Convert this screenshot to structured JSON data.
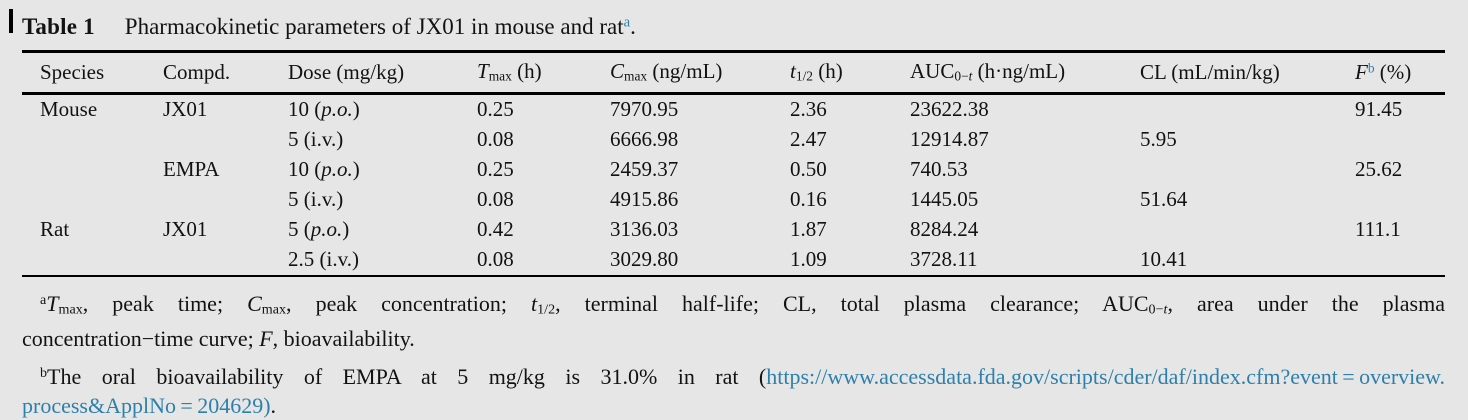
{
  "colors": {
    "background": "#e6e6e6",
    "text": "#121212",
    "accent": "#2d80ab",
    "rule": "#000000"
  },
  "title": {
    "label": "Table 1",
    "segments": [
      {
        "t": "Pharmacokinetic parameters of JX01 in mouse and rat"
      },
      {
        "t": "a",
        "s": "supa"
      },
      {
        "t": "."
      }
    ]
  },
  "table": {
    "headers": [
      [
        {
          "t": "Species"
        }
      ],
      [
        {
          "t": "Compd."
        }
      ],
      [
        {
          "t": "Dose (mg/kg)"
        }
      ],
      [
        {
          "t": "T",
          "s": "i"
        },
        {
          "t": "max",
          "s": "sub"
        },
        {
          "t": " (h)"
        }
      ],
      [
        {
          "t": "C",
          "s": "i"
        },
        {
          "t": "max",
          "s": "sub"
        },
        {
          "t": " (ng/mL)"
        }
      ],
      [
        {
          "t": "t",
          "s": "i"
        },
        {
          "t": "1/2",
          "s": "sub"
        },
        {
          "t": " (h)"
        }
      ],
      [
        {
          "t": "AUC"
        },
        {
          "t": "0−",
          "s": "sub"
        },
        {
          "t": "t",
          "s": "subi"
        },
        {
          "t": " (h·ng/mL)"
        }
      ],
      [
        {
          "t": "CL (mL/min/kg)"
        }
      ],
      [
        {
          "t": "F",
          "s": "i"
        },
        {
          "t": "b",
          "s": "supa"
        },
        {
          "t": " (%)"
        }
      ]
    ],
    "rows": [
      [
        "Mouse",
        "JX01",
        [
          {
            "t": "10 ("
          },
          {
            "t": "p.o.",
            "s": "i"
          },
          {
            "t": ")"
          }
        ],
        "0.25",
        "7970.95",
        "2.36",
        "23622.38",
        "",
        "91.45"
      ],
      [
        "",
        "",
        "5 (i.v.)",
        "0.08",
        "6666.98",
        "2.47",
        "12914.87",
        "5.95",
        ""
      ],
      [
        "",
        "EMPA",
        [
          {
            "t": "10 ("
          },
          {
            "t": "p.o.",
            "s": "i"
          },
          {
            "t": ")"
          }
        ],
        "0.25",
        "2459.37",
        "0.50",
        "740.53",
        "",
        "25.62"
      ],
      [
        "",
        "",
        "5 (i.v.)",
        "0.08",
        "4915.86",
        "0.16",
        "1445.05",
        "51.64",
        ""
      ],
      [
        "Rat",
        "JX01",
        [
          {
            "t": "5 ("
          },
          {
            "t": "p.o.",
            "s": "i"
          },
          {
            "t": ")"
          }
        ],
        "0.42",
        "3136.03",
        "1.87",
        "8284.24",
        "",
        "111.1"
      ],
      [
        "",
        "",
        "2.5 (i.v.)",
        "0.08",
        "3029.80",
        "1.09",
        "3728.11",
        "10.41",
        ""
      ]
    ]
  },
  "footnotes": [
    {
      "id": "a",
      "lines": [
        [
          {
            "t": "a",
            "s": "sup"
          },
          {
            "t": "T",
            "s": "i"
          },
          {
            "t": "max",
            "s": "sub"
          },
          {
            "t": ", peak time; "
          },
          {
            "t": "C",
            "s": "i"
          },
          {
            "t": "max",
            "s": "sub"
          },
          {
            "t": ", peak concentration; "
          },
          {
            "t": "t",
            "s": "i"
          },
          {
            "t": "1/2",
            "s": "sub"
          },
          {
            "t": ", terminal half-life; CL, total plasma clearance; AUC"
          },
          {
            "t": "0−",
            "s": "sub"
          },
          {
            "t": "t",
            "s": "subi"
          },
          {
            "t": ", area under the plasma"
          }
        ],
        [
          {
            "t": "concentration−time curve; "
          },
          {
            "t": "F",
            "s": "i"
          },
          {
            "t": ", bioavailability."
          }
        ]
      ]
    },
    {
      "id": "b",
      "lines": [
        [
          {
            "t": "b",
            "s": "sup"
          },
          {
            "t": "The oral bioavailability of EMPA at 5 mg/kg is 31.0% in rat ("
          },
          {
            "t": "https://www.accessdata.fda.gov/scripts/cder/daf/index.cfm?event = overview.",
            "s": "link"
          }
        ],
        [
          {
            "t": "process&ApplNo = 204629)",
            "s": "link"
          },
          {
            "t": "."
          }
        ]
      ]
    }
  ]
}
